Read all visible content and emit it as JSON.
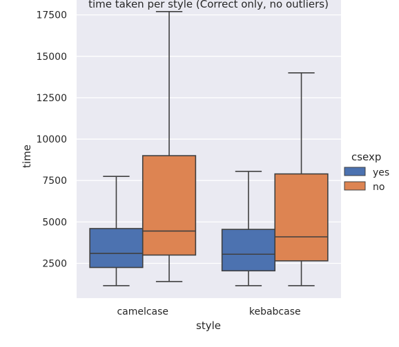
{
  "chart_data": {
    "type": "boxplot",
    "title": "time taken per style (Correct only, no outliers)",
    "xlabel": "style",
    "ylabel": "time",
    "categories": [
      "camelcase",
      "kebabcase"
    ],
    "ylim": [
      400,
      18400
    ],
    "yticks": [
      2500,
      5000,
      7500,
      10000,
      12500,
      15000,
      17500
    ],
    "grid": true,
    "legend": {
      "title": "csexp",
      "placement": "right",
      "entries": [
        "yes",
        "no"
      ]
    },
    "series": [
      {
        "name": "yes",
        "color": "#4c72b0",
        "boxes": [
          {
            "whisker_low": 1150,
            "q1": 2250,
            "median": 3100,
            "q3": 4600,
            "whisker_high": 7750
          },
          {
            "whisker_low": 1150,
            "q1": 2050,
            "median": 3050,
            "q3": 4550,
            "whisker_high": 8050
          }
        ]
      },
      {
        "name": "no",
        "color": "#dd8452",
        "boxes": [
          {
            "whisker_low": 1400,
            "q1": 3000,
            "median": 4450,
            "q3": 9000,
            "whisker_high": 17700
          },
          {
            "whisker_low": 1150,
            "q1": 2650,
            "median": 4100,
            "q3": 7900,
            "whisker_high": 14000
          }
        ]
      }
    ],
    "colors": {
      "plot_background": "#eaeaf2",
      "grid": "#ffffff",
      "line": "#3f3f3f"
    }
  }
}
